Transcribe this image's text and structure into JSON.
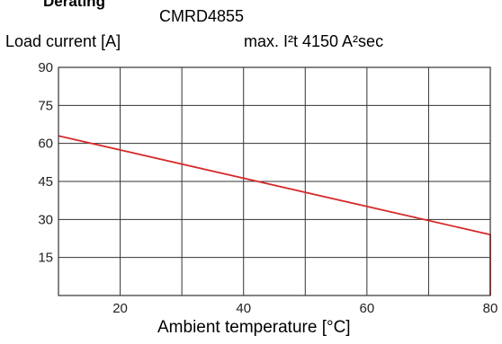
{
  "header": {
    "section_title": "Derating",
    "model": "CMRD4855",
    "note": "max. I²t 4150 A²sec"
  },
  "chart_data": {
    "type": "line",
    "title": "CMRD4855",
    "xlabel": "Ambient temperature [°C]",
    "ylabel": "Load current [A]",
    "xlim": [
      10,
      80
    ],
    "ylim": [
      0,
      90
    ],
    "xticks": [
      20,
      40,
      60,
      80
    ],
    "yticks": [
      15,
      30,
      45,
      60,
      75,
      90
    ],
    "grid": true,
    "line_color": "#d62a2a",
    "series": [
      {
        "x": [
          10,
          80,
          80
        ],
        "y": [
          63,
          24,
          0
        ]
      }
    ]
  }
}
